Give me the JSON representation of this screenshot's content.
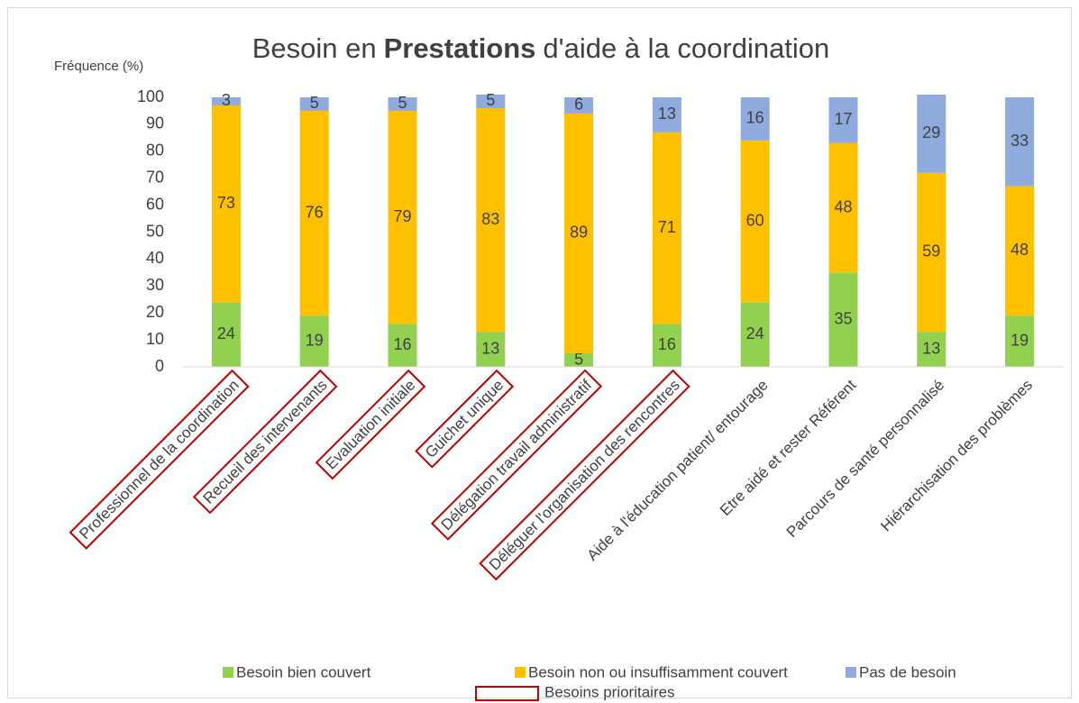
{
  "chart_data": {
    "type": "stacked-bar",
    "title": [
      "Besoin en",
      "Prestations",
      "d'aide à la coordination"
    ],
    "y_axis_label": "Fréquence (%)",
    "categories": [
      "Professionnel de la coordination",
      "Recueil des intervenants",
      "Evaluation initiale",
      "Guichet unique",
      "Délégation travail administratif",
      "Déléguer l'organisation des rencontres",
      "Aide à l'éducation patient/ entourage",
      "Etre aidé et rester Référent",
      "Parcours de santé personnalisé",
      "Hiérarchisation des problèmes"
    ],
    "series": [
      {
        "name": "Besoin bien couvert",
        "color": "#92d050",
        "values": [
          24,
          19,
          16,
          13,
          5,
          16,
          24,
          35,
          13,
          19
        ]
      },
      {
        "name": "Besoin non ou insuffisamment couvert",
        "color": "#ffc000",
        "values": [
          73,
          76,
          79,
          83,
          89,
          71,
          60,
          48,
          59,
          48
        ]
      },
      {
        "name": "Pas de besoin",
        "color": "#8faadc",
        "values": [
          3,
          5,
          5,
          5,
          6,
          13,
          16,
          17,
          29,
          33
        ]
      }
    ],
    "priority": [
      true,
      true,
      true,
      true,
      true,
      true,
      false,
      false,
      false,
      false
    ],
    "priority_legend": "Besoins prioritaires",
    "priority_color": "#c00000",
    "ylim": [
      0,
      100
    ],
    "yticks": [
      0,
      10,
      20,
      30,
      40,
      50,
      60,
      70,
      80,
      90,
      100
    ],
    "grid": false
  }
}
